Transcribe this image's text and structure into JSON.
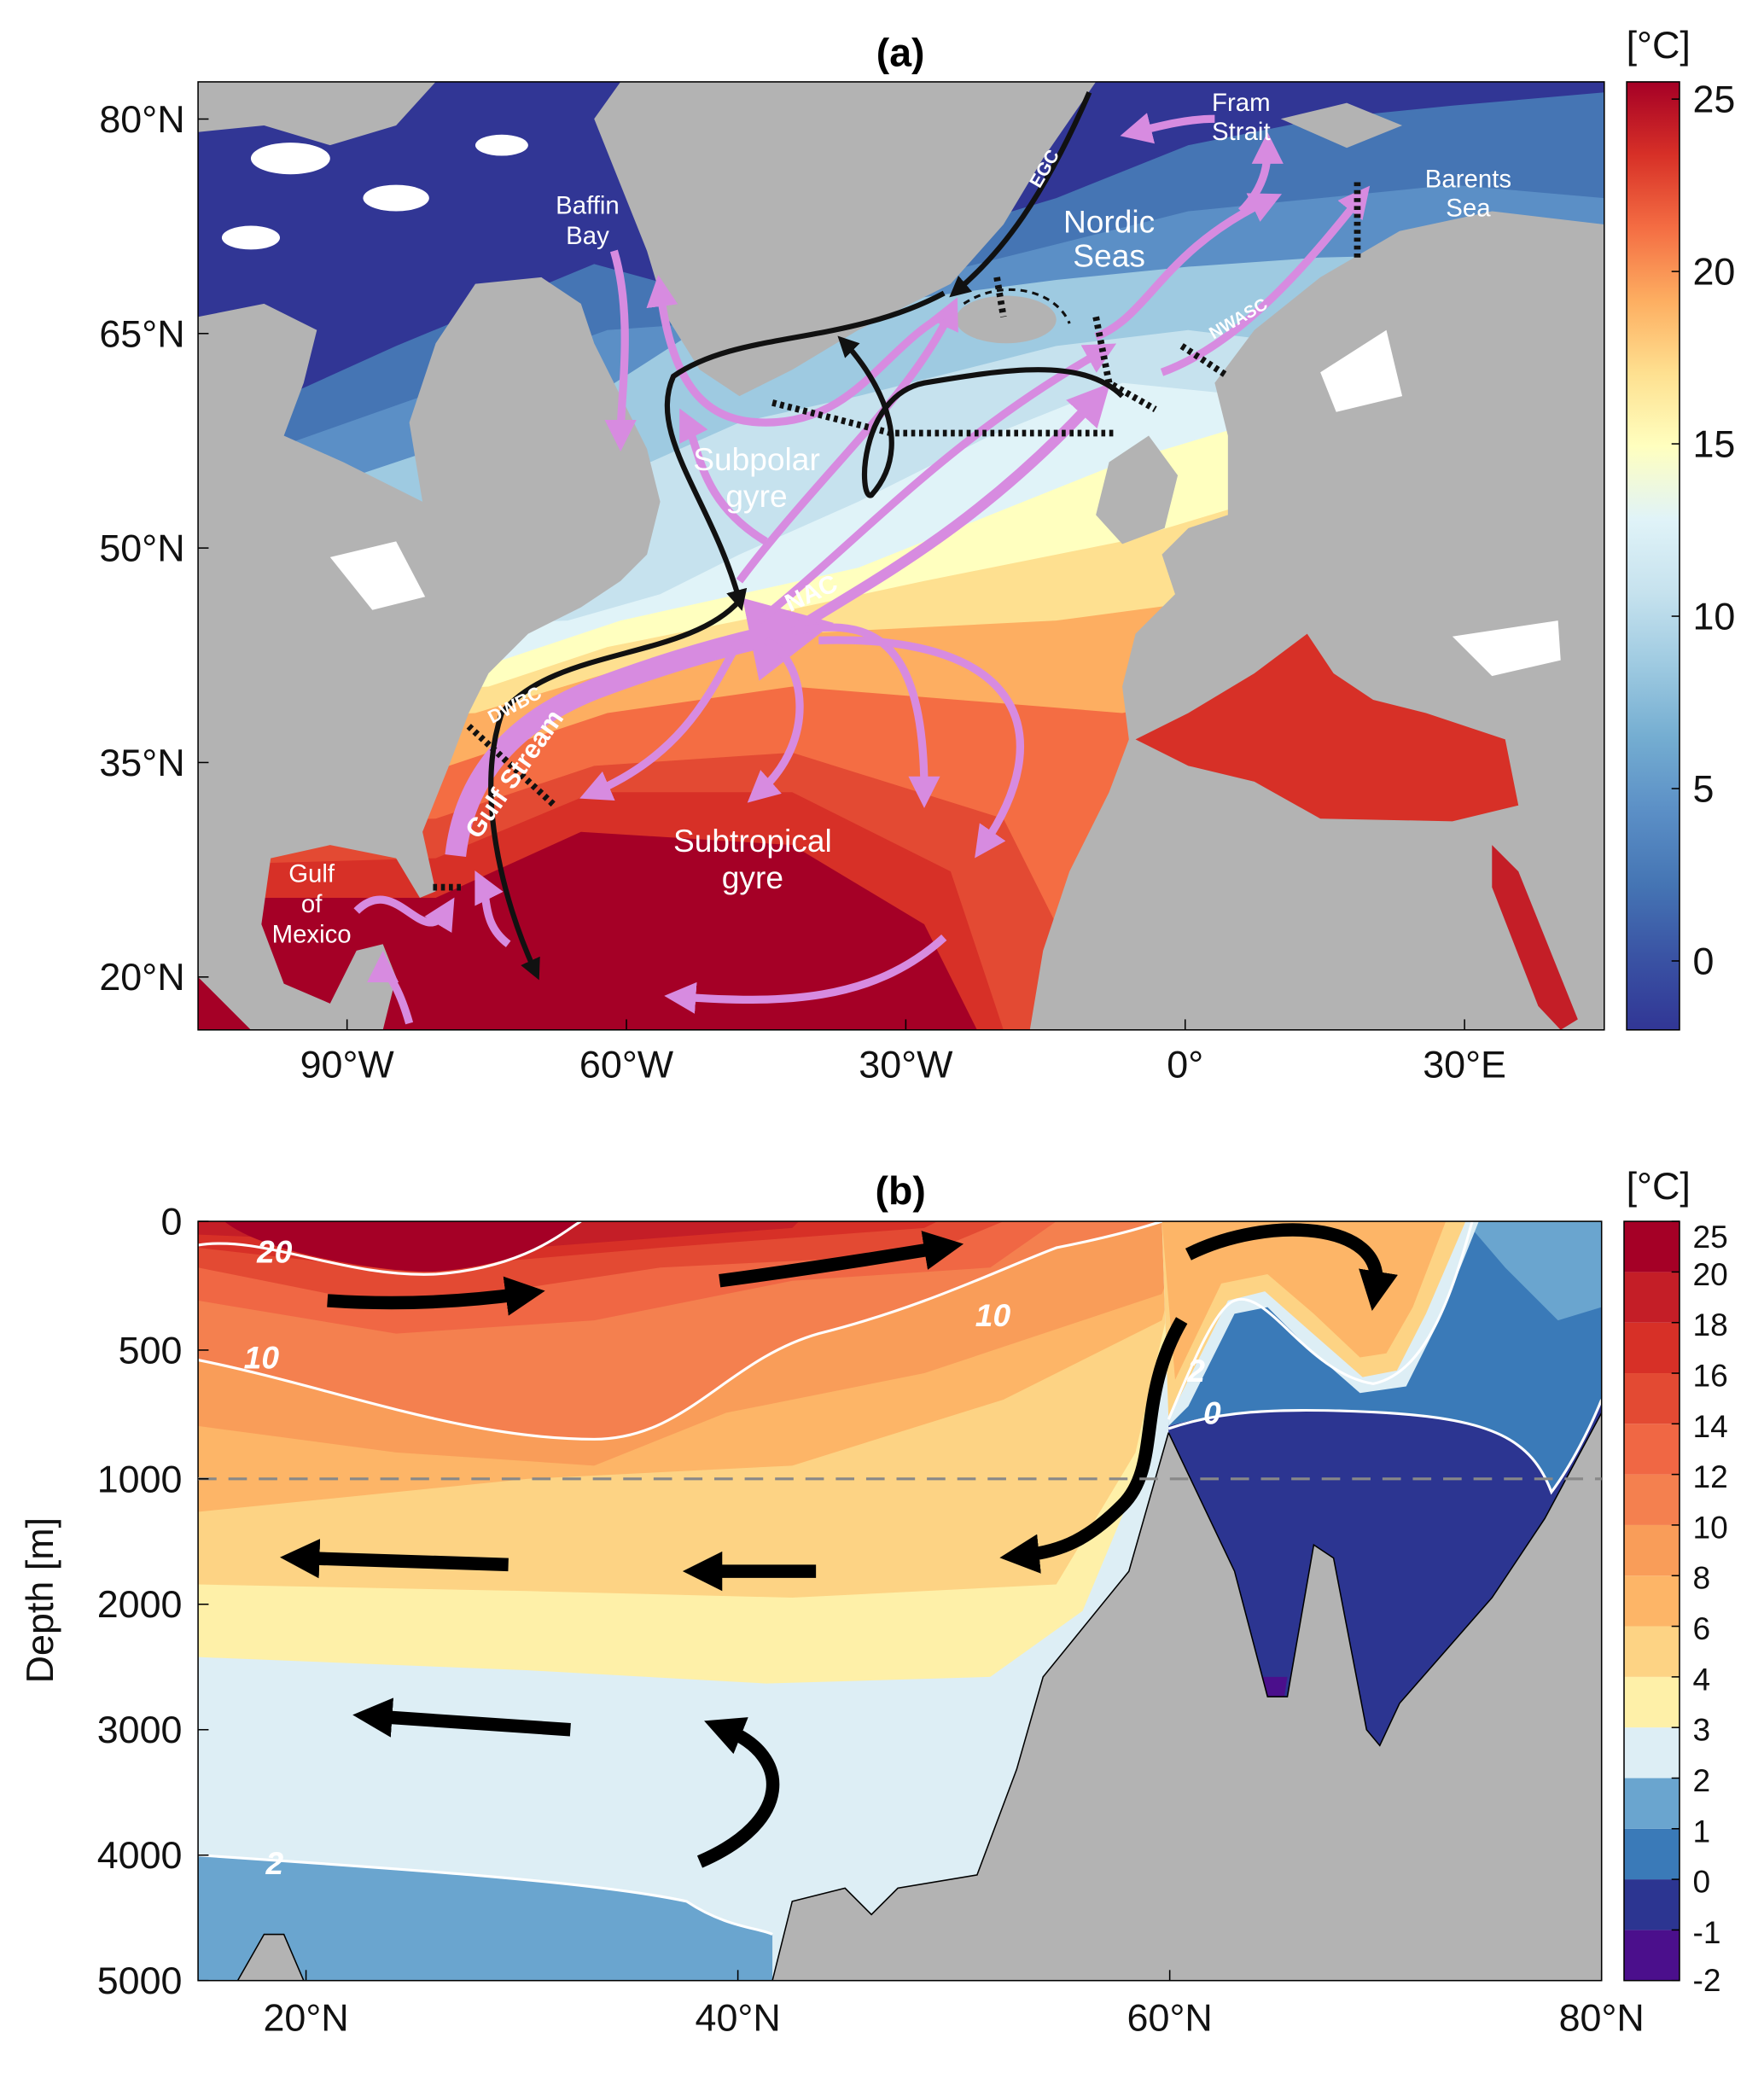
{
  "chart_data": [
    {
      "type": "map",
      "title": "(a)",
      "xlim": [
        -106,
        45
      ],
      "ylim": [
        16.3,
        82.6
      ],
      "xticks": [
        {
          "value": -90,
          "label": "90°W"
        },
        {
          "value": -60,
          "label": "60°W"
        },
        {
          "value": -30,
          "label": "30°W"
        },
        {
          "value": 0,
          "label": "0°"
        },
        {
          "value": 30,
          "label": "30°E"
        }
      ],
      "yticks": [
        {
          "value": 20,
          "label": "20°N"
        },
        {
          "value": 35,
          "label": "35°N"
        },
        {
          "value": 50,
          "label": "50°N"
        },
        {
          "value": 65,
          "label": "65°N"
        },
        {
          "value": 80,
          "label": "80°N"
        }
      ],
      "annotations": [
        [
          "Baffin",
          "Bay"
        ],
        [
          "Nordic",
          "Seas"
        ],
        [
          "Fram",
          "Strait"
        ],
        [
          "Barents",
          "Sea"
        ],
        [
          "Subpolar",
          "gyre"
        ],
        [
          "NAC"
        ],
        [
          "EGC"
        ],
        [
          "NWASC"
        ],
        [
          "DWBC"
        ],
        [
          "Gulf Stream"
        ],
        [
          "Subtropical",
          "gyre"
        ],
        [
          "Gulf",
          "of",
          "Mexico"
        ]
      ],
      "colorbar": {
        "label": "[°C]",
        "lim": [
          -2,
          25.5
        ],
        "ticks": [
          0,
          5,
          10,
          15,
          20,
          25
        ],
        "colormap": [
          "#313695",
          "#3a53a4",
          "#4575b4",
          "#5b8fc6",
          "#74add1",
          "#9ecae1",
          "#c6e2ee",
          "#e0f3f8",
          "#ffffbf",
          "#fee090",
          "#fdae61",
          "#f46d43",
          "#d73027",
          "#a50026"
        ]
      }
    },
    {
      "type": "section",
      "title": "(b)",
      "ylabel": "Depth [m]",
      "xlim": [
        15,
        80
      ],
      "xticks": [
        {
          "value": 20,
          "label": "20°N"
        },
        {
          "value": 40,
          "label": "40°N"
        },
        {
          "value": 60,
          "label": "60°N"
        },
        {
          "value": 80,
          "label": "80°N"
        }
      ],
      "ylim": [
        0,
        5000
      ],
      "yticks": [
        0,
        500,
        1000,
        2000,
        3000,
        4000,
        5000
      ],
      "reference_line": 1000,
      "contour_labels": [
        20,
        10,
        10,
        2,
        0,
        2
      ],
      "colorbar": {
        "label": "[°C]",
        "levels": [
          -2,
          -1,
          0,
          1,
          2,
          3,
          4,
          6,
          8,
          10,
          12,
          14,
          16,
          18,
          20,
          25
        ],
        "colors": [
          "#4b0f8c",
          "#2c3591",
          "#3a7ab8",
          "#6aa5cf",
          "#ddeef5",
          "#fef0a8",
          "#fdd384",
          "#fdb567",
          "#f99d59",
          "#f4804f",
          "#f06744",
          "#e34a33",
          "#d73027",
          "#c41e27",
          "#a50026"
        ]
      }
    }
  ]
}
